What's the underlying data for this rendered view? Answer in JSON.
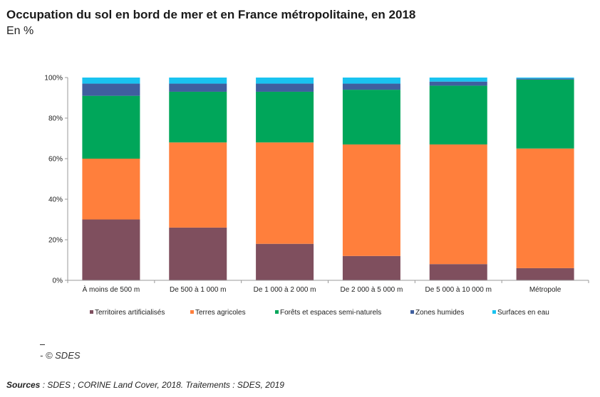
{
  "header": {
    "title": "Occupation du sol en bord de mer et en France métropolitaine, en 2018",
    "subtitle": "En %"
  },
  "footer": {
    "credit": "- © SDES",
    "sources_label": "Sources",
    "sources_text": " : SDES ; CORINE Land Cover, 2018. Traitements : SDES, 2019"
  },
  "chart_data": {
    "type": "bar",
    "stacked": true,
    "title": "",
    "xlabel": "",
    "ylabel": "",
    "ylim": [
      0,
      100
    ],
    "y_ticks": [
      "0%",
      "20%",
      "40%",
      "60%",
      "80%",
      "100%"
    ],
    "grid": false,
    "legend_position": "bottom",
    "categories": [
      "À moins de 500 m",
      "De 500 à 1 000 m",
      "De 1 000 à 2 000 m",
      "De 2 000 à 5 000 m",
      "De 5 000 à 10 000 m",
      "Métropole"
    ],
    "series": [
      {
        "name": "Territoires artificialisés",
        "color": "#7f4f5e",
        "values": [
          30,
          26,
          18,
          12,
          8,
          6
        ]
      },
      {
        "name": "Terres agricoles",
        "color": "#ff7f3c",
        "values": [
          30,
          42,
          50,
          55,
          59,
          59
        ]
      },
      {
        "name": "Forêts et espaces semi-naturels",
        "color": "#00a65a",
        "values": [
          31,
          25,
          25,
          27,
          29,
          34
        ]
      },
      {
        "name": "Zones humides",
        "color": "#3f5f9f",
        "values": [
          6,
          4,
          4,
          3,
          2,
          0.5
        ]
      },
      {
        "name": "Surfaces en eau",
        "color": "#19c3f0",
        "values": [
          3,
          3,
          3,
          3,
          2,
          0.5
        ]
      }
    ]
  }
}
